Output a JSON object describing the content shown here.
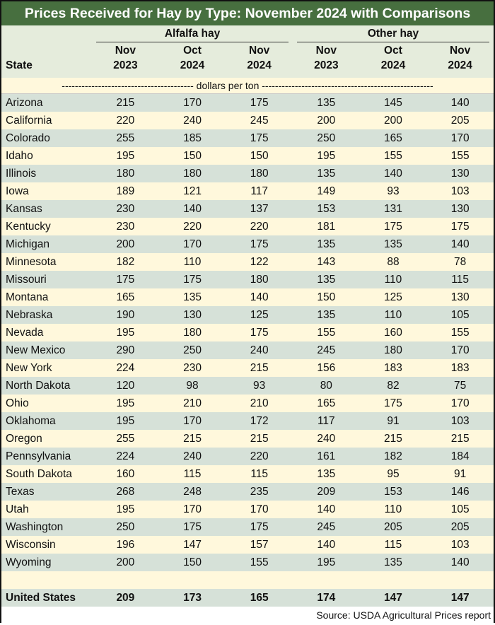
{
  "title": "Prices Received for Hay by Type: November 2024 with Comparisons",
  "groups": {
    "alfalfa": "Alfalfa hay",
    "other": "Other hay"
  },
  "state_header": "State",
  "columns": [
    {
      "line1": "Nov",
      "line2": "2023"
    },
    {
      "line1": "Oct",
      "line2": "2024"
    },
    {
      "line1": "Nov",
      "line2": "2024"
    },
    {
      "line1": "Nov",
      "line2": "2023"
    },
    {
      "line1": "Oct",
      "line2": "2024"
    },
    {
      "line1": "Nov",
      "line2": "2024"
    }
  ],
  "units": "---------------------------------------- dollars per ton ----------------------------------------------------",
  "rows": [
    {
      "state": "Arizona",
      "values": [
        "215",
        "170",
        "175",
        "135",
        "145",
        "140"
      ]
    },
    {
      "state": "California",
      "values": [
        "220",
        "240",
        "245",
        "200",
        "200",
        "205"
      ]
    },
    {
      "state": "Colorado",
      "values": [
        "255",
        "185",
        "175",
        "250",
        "165",
        "170"
      ]
    },
    {
      "state": "Idaho",
      "values": [
        "195",
        "150",
        "150",
        "195",
        "155",
        "155"
      ]
    },
    {
      "state": "Illinois",
      "values": [
        "180",
        "180",
        "180",
        "135",
        "140",
        "130"
      ]
    },
    {
      "state": "Iowa",
      "values": [
        "189",
        "121",
        "117",
        "149",
        "93",
        "103"
      ]
    },
    {
      "state": "Kansas",
      "values": [
        "230",
        "140",
        "137",
        "153",
        "131",
        "130"
      ]
    },
    {
      "state": "Kentucky",
      "values": [
        "230",
        "220",
        "220",
        "181",
        "175",
        "175"
      ]
    },
    {
      "state": "Michigan",
      "values": [
        "200",
        "170",
        "175",
        "135",
        "135",
        "140"
      ]
    },
    {
      "state": "Minnesota",
      "values": [
        "182",
        "110",
        "122",
        "143",
        "88",
        "78"
      ]
    },
    {
      "state": "Missouri",
      "values": [
        "175",
        "175",
        "180",
        "135",
        "110",
        "115"
      ]
    },
    {
      "state": "Montana",
      "values": [
        "165",
        "135",
        "140",
        "150",
        "125",
        "130"
      ]
    },
    {
      "state": "Nebraska",
      "values": [
        "190",
        "130",
        "125",
        "135",
        "110",
        "105"
      ]
    },
    {
      "state": "Nevada",
      "values": [
        "195",
        "180",
        "175",
        "155",
        "160",
        "155"
      ]
    },
    {
      "state": "New Mexico",
      "values": [
        "290",
        "250",
        "240",
        "245",
        "180",
        "170"
      ]
    },
    {
      "state": "New York",
      "values": [
        "224",
        "230",
        "215",
        "156",
        "183",
        "183"
      ]
    },
    {
      "state": "North Dakota",
      "values": [
        "120",
        "98",
        "93",
        "80",
        "82",
        "75"
      ]
    },
    {
      "state": "Ohio",
      "values": [
        "195",
        "210",
        "210",
        "165",
        "175",
        "170"
      ]
    },
    {
      "state": "Oklahoma",
      "values": [
        "195",
        "170",
        "172",
        "117",
        "91",
        "103"
      ]
    },
    {
      "state": "Oregon",
      "values": [
        "255",
        "215",
        "215",
        "240",
        "215",
        "215"
      ]
    },
    {
      "state": "Pennsylvania",
      "values": [
        "224",
        "240",
        "220",
        "161",
        "182",
        "184"
      ]
    },
    {
      "state": "South Dakota",
      "values": [
        "160",
        "115",
        "115",
        "135",
        "95",
        "91"
      ]
    },
    {
      "state": "Texas",
      "values": [
        "268",
        "248",
        "235",
        "209",
        "153",
        "146"
      ]
    },
    {
      "state": "Utah",
      "values": [
        "195",
        "170",
        "170",
        "140",
        "110",
        "105"
      ]
    },
    {
      "state": "Washington",
      "values": [
        "250",
        "175",
        "175",
        "245",
        "205",
        "205"
      ]
    },
    {
      "state": "Wisconsin",
      "values": [
        "196",
        "147",
        "157",
        "140",
        "115",
        "103"
      ]
    },
    {
      "state": "Wyoming",
      "values": [
        "200",
        "150",
        "155",
        "195",
        "135",
        "140"
      ]
    }
  ],
  "total": {
    "state": "United States",
    "values": [
      "209",
      "173",
      "165",
      "174",
      "147",
      "147"
    ]
  },
  "source": "Source: USDA Agricultural Prices report",
  "colors": {
    "title_bg": "#476f3f",
    "band_green": "#d6e1d8",
    "band_cream": "#fff8dc",
    "header_bg": "#e5ecdc"
  }
}
